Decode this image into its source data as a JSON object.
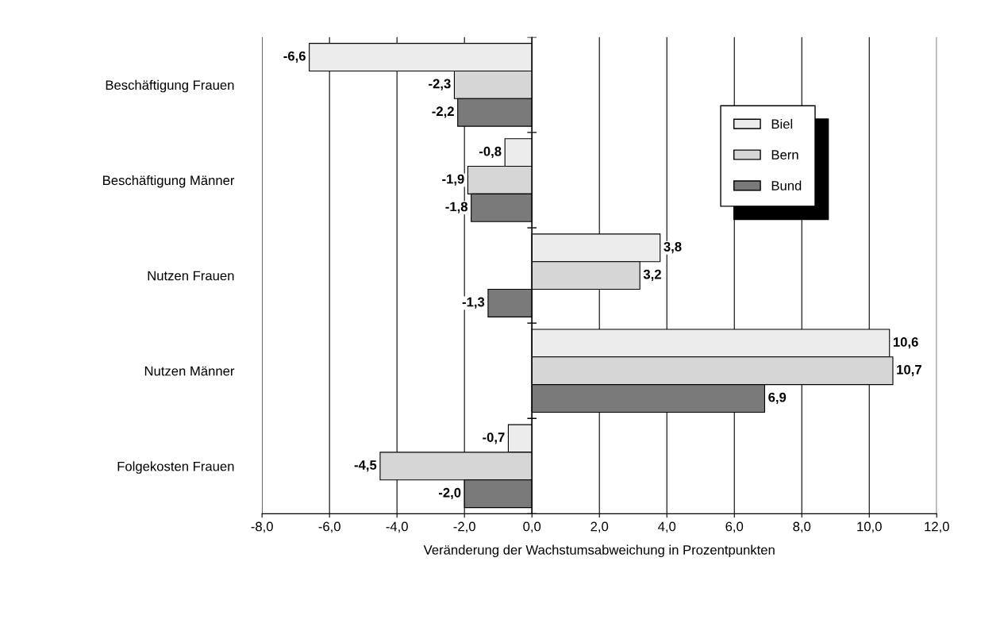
{
  "chart_data": {
    "type": "bar",
    "orientation": "horizontal",
    "xlabel": "Veränderung der Wachstumsabweichung in Prozentpunkten",
    "categories": [
      "Beschäftigung Frauen",
      "Beschäftigung Männer",
      "Nutzen Frauen",
      "Nutzen Männer",
      "Folgekosten Frauen"
    ],
    "series": [
      {
        "name": "Biel",
        "color": "#ececec",
        "values": [
          -6.6,
          -0.8,
          3.8,
          10.6,
          -0.7
        ],
        "value_labels": [
          "-6,6",
          "-0,8",
          "3,8",
          "10,6",
          "-0,7"
        ]
      },
      {
        "name": "Bern",
        "color": "#d6d6d6",
        "values": [
          -2.3,
          -1.9,
          3.2,
          10.7,
          -4.5
        ],
        "value_labels": [
          "-2,3",
          "-1,9",
          "3,2",
          "10,7",
          "-4,5"
        ]
      },
      {
        "name": "Bund",
        "color": "#7a7a7a",
        "values": [
          -2.2,
          -1.8,
          -1.3,
          6.9,
          -2.0
        ],
        "value_labels": [
          "-2,2",
          "-1,8",
          "-1,3",
          "6,9",
          "-2,0"
        ]
      }
    ],
    "xlim": [
      -8,
      12
    ],
    "xticks": [
      {
        "value": -8,
        "label": "-8,0"
      },
      {
        "value": -6,
        "label": "-6,0"
      },
      {
        "value": -4,
        "label": "-4,0"
      },
      {
        "value": -2,
        "label": "-2,0"
      },
      {
        "value": 0,
        "label": "0,0"
      },
      {
        "value": 2,
        "label": "2,0"
      },
      {
        "value": 4,
        "label": "4,0"
      },
      {
        "value": 6,
        "label": "6,0"
      },
      {
        "value": 8,
        "label": "8,0"
      },
      {
        "value": 10,
        "label": "10,0"
      },
      {
        "value": 12,
        "label": "12,0"
      }
    ],
    "grid": "x",
    "legend": "top right"
  }
}
